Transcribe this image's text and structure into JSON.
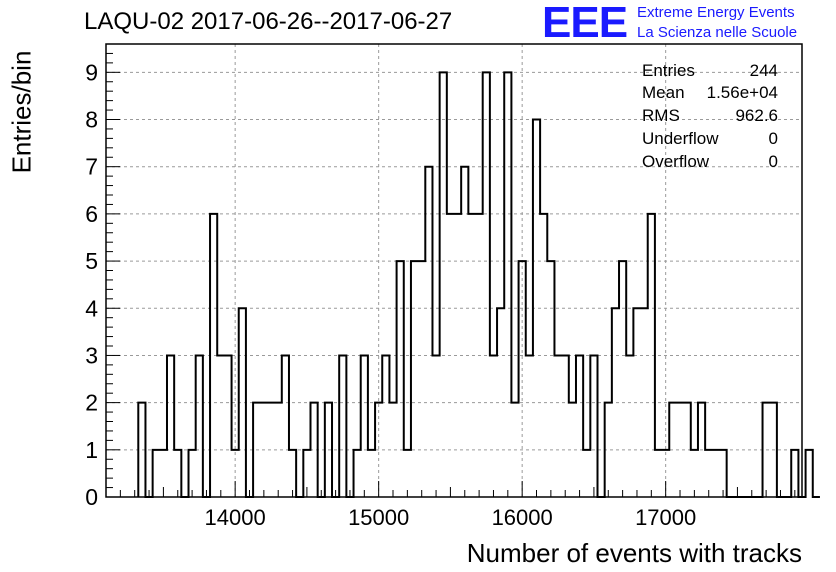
{
  "title": "LAQU-02 2017-06-26--2017-06-27",
  "logo": {
    "mark": "EEE",
    "line1": "Extreme Energy Events",
    "line2": "La Scienza nelle Scuole"
  },
  "stats": [
    {
      "label": "Entries",
      "value": "244"
    },
    {
      "label": "Mean",
      "value": "1.56e+04"
    },
    {
      "label": "RMS",
      "value": "962.6"
    },
    {
      "label": "Underflow",
      "value": "0"
    },
    {
      "label": "Overflow",
      "value": "0"
    }
  ],
  "colors": {
    "line": "#000000",
    "grid": "#9a9a9a",
    "logo": "#1a1aff"
  },
  "chart_data": {
    "type": "bar",
    "subtype": "histogram-step",
    "xlabel": "Number of events with tracks",
    "ylabel": "Entries/bin",
    "xlim": [
      13100,
      17950
    ],
    "ylim": [
      0,
      9.6
    ],
    "bin_start": 13325,
    "bin_width": 50,
    "grid": true,
    "x_ticks": [
      "14000",
      "15000",
      "16000",
      "17000"
    ],
    "x_tick_values": [
      14000,
      15000,
      16000,
      17000
    ],
    "y_ticks": [
      "0",
      "1",
      "2",
      "3",
      "4",
      "5",
      "6",
      "7",
      "8",
      "9"
    ],
    "values": [
      2,
      0,
      1,
      1,
      3,
      1,
      0,
      1,
      3,
      0,
      6,
      3,
      3,
      1,
      4,
      0,
      2,
      2,
      2,
      2,
      3,
      1,
      0,
      1,
      2,
      0,
      2,
      0,
      3,
      0,
      1,
      3,
      1,
      2,
      3,
      2,
      5,
      1,
      5,
      5,
      7,
      3,
      9,
      6,
      6,
      7,
      6,
      6,
      9,
      3,
      4,
      9,
      2,
      5,
      3,
      8,
      6,
      5,
      3,
      3,
      2,
      3,
      1,
      3,
      0,
      2,
      4,
      5,
      3,
      4,
      4,
      6,
      1,
      1,
      2,
      2,
      2,
      1,
      2,
      1,
      1,
      1,
      0,
      0,
      0,
      0,
      0,
      2,
      2,
      0,
      0,
      1,
      0,
      1,
      0
    ]
  }
}
